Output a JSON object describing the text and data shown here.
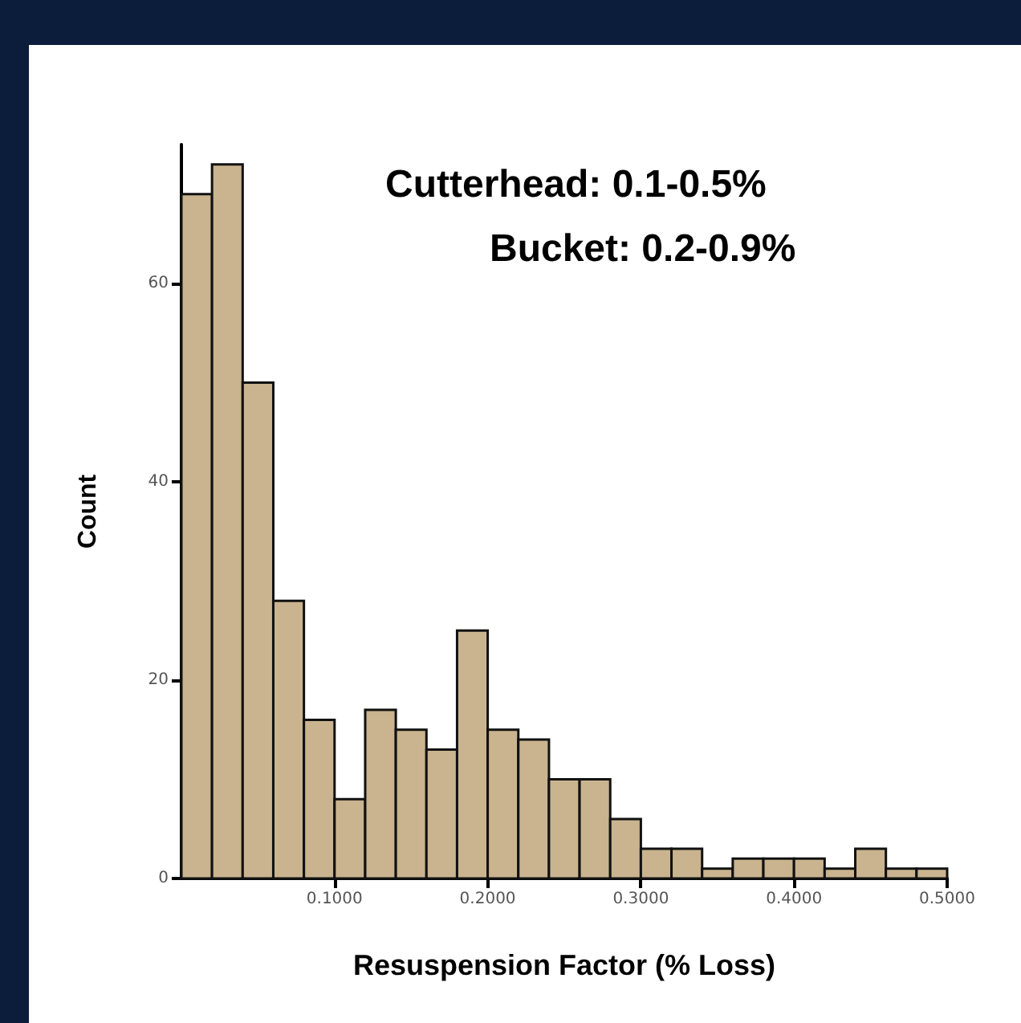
{
  "chart_data": {
    "type": "histogram",
    "xlabel": "Resuspension Factor (% Loss)",
    "ylabel": "Count",
    "annotations": [
      "Cutterhead: 0.1-0.5%",
      "Bucket: 0.2-0.9%"
    ],
    "bins": [
      0,
      0.02,
      0.04,
      0.06,
      0.08,
      0.1,
      0.12,
      0.14,
      0.16,
      0.18,
      0.2,
      0.22,
      0.24,
      0.26,
      0.28,
      0.3,
      0.32,
      0.34,
      0.36,
      0.38,
      0.4,
      0.42,
      0.44,
      0.46,
      0.48,
      0.5
    ],
    "values": [
      69,
      72,
      50,
      28,
      16,
      8,
      17,
      15,
      13,
      25,
      15,
      14,
      10,
      10,
      6,
      3,
      3,
      1,
      2,
      2,
      2,
      1,
      3,
      1,
      1
    ],
    "color": "#c9b48f",
    "xlim": [
      0,
      0.5
    ],
    "xticks": [
      {
        "value": 0.1,
        "label": "0.1000"
      },
      {
        "value": 0.2,
        "label": "0.2000"
      },
      {
        "value": 0.3,
        "label": "0.3000"
      },
      {
        "value": 0.4,
        "label": "0.4000"
      },
      {
        "value": 0.5,
        "label": "0.5000"
      }
    ],
    "ylim": [
      0,
      74
    ],
    "yticks": [
      0,
      20,
      40,
      60
    ],
    "grid": false
  }
}
